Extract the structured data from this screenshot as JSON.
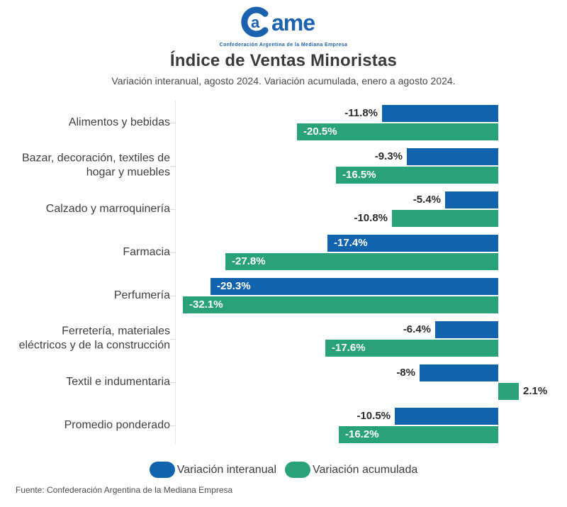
{
  "logo": {
    "brand": "ame",
    "tagline": "Confederación Argentina de la Mediana Empresa",
    "color": "#1b62ae"
  },
  "header": {
    "title": "Índice de Ventas Minoristas",
    "subtitle": "Variación interanual, agosto 2024. Variación acumulada, enero a agosto 2024."
  },
  "chart_data": {
    "type": "bar",
    "orientation": "horizontal",
    "unit": "%",
    "baseline": 0,
    "xlim": [
      -33,
      2.5
    ],
    "grid": false,
    "legend_position": "bottom",
    "categories": [
      "Alimentos y bebidas",
      "Bazar, decoración, textiles de hogar y muebles",
      "Calzado y marroquinería",
      "Farmacia",
      "Perfumería",
      "Ferretería, materiales eléctricos y de la construcción",
      "Textil e indumentaria",
      "Promedio ponderado"
    ],
    "category_lines": [
      [
        "Alimentos y bebidas"
      ],
      [
        "Bazar, decoración, textiles de",
        "hogar y muebles"
      ],
      [
        "Calzado y marroquinería"
      ],
      [
        "Farmacia"
      ],
      [
        "Perfumería"
      ],
      [
        "Ferretería, materiales",
        "eléctricos y de la construcción"
      ],
      [
        "Textil e indumentaria"
      ],
      [
        "Promedio ponderado"
      ]
    ],
    "series": [
      {
        "key": "interanual",
        "name": "Variación interanual",
        "color": "#1263ad",
        "values": [
          -11.8,
          -9.3,
          -5.4,
          -17.4,
          -29.3,
          -6.4,
          -8,
          -10.5
        ],
        "labels": [
          "-11.8%",
          "-9.3%",
          "-5.4%",
          "-17.4%",
          "-29.3%",
          "-6.4%",
          "-8%",
          "-10.5%"
        ],
        "label_inside": [
          false,
          false,
          false,
          true,
          true,
          false,
          false,
          false
        ]
      },
      {
        "key": "acumulada",
        "name": "Variación acumulada",
        "color": "#29a27a",
        "values": [
          -20.5,
          -16.5,
          -10.8,
          -27.8,
          -32.1,
          -17.6,
          2.1,
          -16.2
        ],
        "labels": [
          "-20.5%",
          "-16.5%",
          "-10.8%",
          "-27.8%",
          "-32.1%",
          "-17.6%",
          "2.1%",
          "-16.2%"
        ],
        "label_inside": [
          true,
          true,
          false,
          true,
          true,
          true,
          false,
          true
        ]
      }
    ]
  },
  "legend": {
    "items": [
      {
        "label": "Variación interanual",
        "color": "#1263ad"
      },
      {
        "label": "Variación acumulada",
        "color": "#29a27a"
      }
    ]
  },
  "footer": {
    "source": "Fuente: Confederación Argentina de la Mediana Empresa"
  }
}
